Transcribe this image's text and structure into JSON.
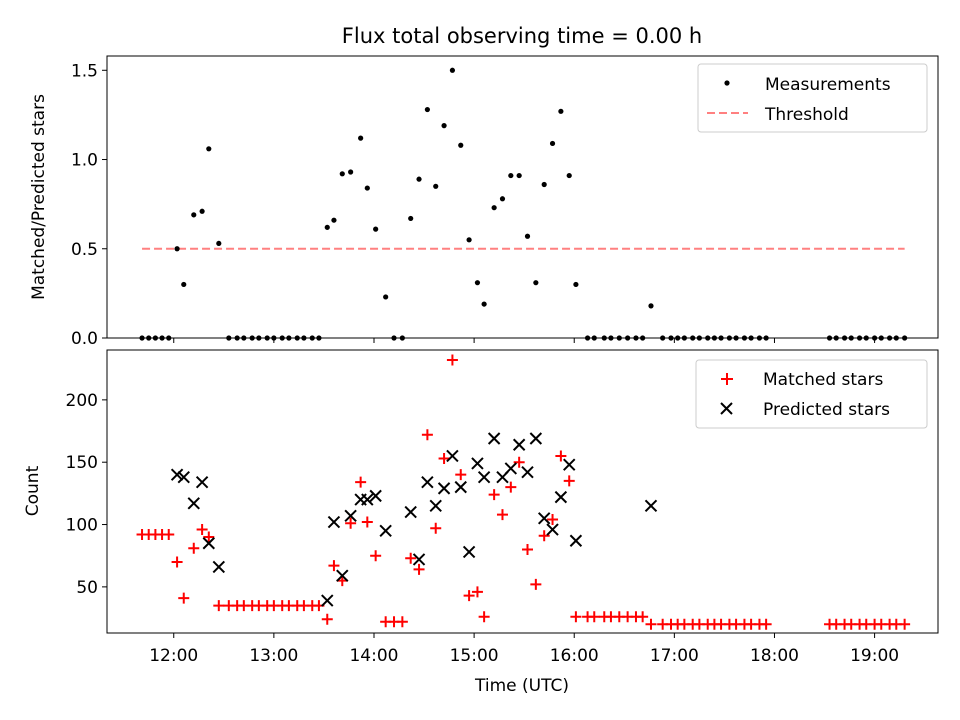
{
  "title": "Flux total observing time = 0.00 h",
  "chart_data": [
    {
      "type": "scatter",
      "panel": "top",
      "ylabel": "Matched/Predicted stars",
      "xlabel": "",
      "ylim": [
        0,
        1.58
      ],
      "yticks": [
        0,
        0.5,
        1.0,
        1.5
      ],
      "ytick_labels": [
        "0.0",
        "0.5",
        "1.0",
        "1.5"
      ],
      "legend_placement": "top-right",
      "series": [
        {
          "name": "Measurements",
          "marker": "dot",
          "color": "#000000",
          "points": [
            [
              "11:41",
              0
            ],
            [
              "11:45",
              0
            ],
            [
              "11:49",
              0
            ],
            [
              "11:53",
              0
            ],
            [
              "11:57",
              0
            ],
            [
              "12:02",
              0.5
            ],
            [
              "12:06",
              0.3
            ],
            [
              "12:12",
              0.69
            ],
            [
              "12:17",
              0.71
            ],
            [
              "12:21",
              1.06
            ],
            [
              "12:27",
              0.53
            ],
            [
              "12:33",
              0
            ],
            [
              "12:38",
              0
            ],
            [
              "12:42",
              0
            ],
            [
              "12:47",
              0
            ],
            [
              "12:51",
              0
            ],
            [
              "12:56",
              0
            ],
            [
              "13:00",
              0
            ],
            [
              "13:05",
              0
            ],
            [
              "13:09",
              0
            ],
            [
              "13:14",
              0
            ],
            [
              "13:18",
              0
            ],
            [
              "13:23",
              0
            ],
            [
              "13:27",
              0
            ],
            [
              "13:32",
              0.62
            ],
            [
              "13:36",
              0.66
            ],
            [
              "13:41",
              0.92
            ],
            [
              "13:46",
              0.93
            ],
            [
              "13:52",
              1.12
            ],
            [
              "13:56",
              0.84
            ],
            [
              "14:01",
              0.61
            ],
            [
              "14:07",
              0.23
            ],
            [
              "14:12",
              0
            ],
            [
              "14:17",
              0
            ],
            [
              "14:22",
              0.67
            ],
            [
              "14:27",
              0.89
            ],
            [
              "14:32",
              1.28
            ],
            [
              "14:37",
              0.85
            ],
            [
              "14:42",
              1.19
            ],
            [
              "14:47",
              1.5
            ],
            [
              "14:52",
              1.08
            ],
            [
              "14:57",
              0.55
            ],
            [
              "15:02",
              0.31
            ],
            [
              "15:06",
              0.19
            ],
            [
              "15:12",
              0.73
            ],
            [
              "15:17",
              0.78
            ],
            [
              "15:22",
              0.91
            ],
            [
              "15:27",
              0.91
            ],
            [
              "15:32",
              0.57
            ],
            [
              "15:37",
              0.31
            ],
            [
              "15:42",
              0.86
            ],
            [
              "15:47",
              1.09
            ],
            [
              "15:52",
              1.27
            ],
            [
              "15:57",
              0.91
            ],
            [
              "16:01",
              0.3
            ],
            [
              "16:08",
              0
            ],
            [
              "16:12",
              0
            ],
            [
              "16:18",
              0
            ],
            [
              "16:22",
              0
            ],
            [
              "16:27",
              0
            ],
            [
              "16:32",
              0
            ],
            [
              "16:37",
              0
            ],
            [
              "16:41",
              0
            ],
            [
              "16:46",
              0.18
            ],
            [
              "16:53",
              0
            ],
            [
              "16:58",
              0
            ],
            [
              "17:02",
              0
            ],
            [
              "17:06",
              0
            ],
            [
              "17:11",
              0
            ],
            [
              "17:15",
              0
            ],
            [
              "17:20",
              0
            ],
            [
              "17:24",
              0
            ],
            [
              "17:28",
              0
            ],
            [
              "17:33",
              0
            ],
            [
              "17:37",
              0
            ],
            [
              "17:42",
              0
            ],
            [
              "17:46",
              0
            ],
            [
              "17:51",
              0
            ],
            [
              "17:55",
              0
            ],
            [
              "18:33",
              0
            ],
            [
              "18:37",
              0
            ],
            [
              "18:42",
              0
            ],
            [
              "18:46",
              0
            ],
            [
              "18:51",
              0
            ],
            [
              "18:55",
              0
            ],
            [
              "19:00",
              0
            ],
            [
              "19:04",
              0
            ],
            [
              "19:09",
              0
            ],
            [
              "19:13",
              0
            ],
            [
              "19:18",
              0
            ]
          ]
        },
        {
          "name": "Threshold",
          "marker": "dashed-line",
          "color": "#ff8080",
          "x": [
            "11:41",
            "19:18"
          ],
          "y": [
            0.5,
            0.5
          ]
        }
      ]
    },
    {
      "type": "scatter",
      "panel": "bottom",
      "ylabel": "Count",
      "xlabel": "Time (UTC)",
      "ylim": [
        13,
        240
      ],
      "yticks": [
        50,
        100,
        150,
        200
      ],
      "ytick_labels": [
        "50",
        "100",
        "150",
        "200"
      ],
      "xlim": [
        "11:20",
        "19:38"
      ],
      "xticks": [
        "12:00",
        "13:00",
        "14:00",
        "15:00",
        "16:00",
        "17:00",
        "18:00",
        "19:00"
      ],
      "legend_placement": "top-right",
      "series": [
        {
          "name": "Matched stars",
          "marker": "plus",
          "color": "#ff0000",
          "points": [
            [
              "11:41",
              92
            ],
            [
              "11:45",
              92
            ],
            [
              "11:49",
              92
            ],
            [
              "11:53",
              92
            ],
            [
              "11:57",
              92
            ],
            [
              "12:02",
              70
            ],
            [
              "12:06",
              41
            ],
            [
              "12:12",
              81
            ],
            [
              "12:17",
              96
            ],
            [
              "12:21",
              90
            ],
            [
              "12:27",
              35
            ],
            [
              "12:33",
              35
            ],
            [
              "12:38",
              35
            ],
            [
              "12:42",
              35
            ],
            [
              "12:47",
              35
            ],
            [
              "12:51",
              35
            ],
            [
              "12:56",
              35
            ],
            [
              "13:00",
              35
            ],
            [
              "13:05",
              35
            ],
            [
              "13:09",
              35
            ],
            [
              "13:14",
              35
            ],
            [
              "13:18",
              35
            ],
            [
              "13:23",
              35
            ],
            [
              "13:27",
              35
            ],
            [
              "13:32",
              24
            ],
            [
              "13:36",
              67
            ],
            [
              "13:41",
              55
            ],
            [
              "13:46",
              101
            ],
            [
              "13:52",
              134
            ],
            [
              "13:56",
              102
            ],
            [
              "14:01",
              75
            ],
            [
              "14:07",
              22
            ],
            [
              "14:12",
              22
            ],
            [
              "14:17",
              22
            ],
            [
              "14:22",
              73
            ],
            [
              "14:27",
              64
            ],
            [
              "14:32",
              172
            ],
            [
              "14:37",
              97
            ],
            [
              "14:42",
              153
            ],
            [
              "14:47",
              232
            ],
            [
              "14:52",
              140
            ],
            [
              "14:57",
              43
            ],
            [
              "15:02",
              46
            ],
            [
              "15:06",
              26
            ],
            [
              "15:12",
              124
            ],
            [
              "15:17",
              108
            ],
            [
              "15:22",
              130
            ],
            [
              "15:27",
              150
            ],
            [
              "15:32",
              80
            ],
            [
              "15:37",
              52
            ],
            [
              "15:42",
              91
            ],
            [
              "15:47",
              104
            ],
            [
              "15:52",
              155
            ],
            [
              "15:57",
              135
            ],
            [
              "16:01",
              26
            ],
            [
              "16:08",
              26
            ],
            [
              "16:12",
              26
            ],
            [
              "16:18",
              26
            ],
            [
              "16:22",
              26
            ],
            [
              "16:27",
              26
            ],
            [
              "16:32",
              26
            ],
            [
              "16:37",
              26
            ],
            [
              "16:41",
              26
            ],
            [
              "16:46",
              20
            ],
            [
              "16:53",
              20
            ],
            [
              "16:58",
              20
            ],
            [
              "17:02",
              20
            ],
            [
              "17:06",
              20
            ],
            [
              "17:11",
              20
            ],
            [
              "17:15",
              20
            ],
            [
              "17:20",
              20
            ],
            [
              "17:24",
              20
            ],
            [
              "17:28",
              20
            ],
            [
              "17:33",
              20
            ],
            [
              "17:37",
              20
            ],
            [
              "17:42",
              20
            ],
            [
              "17:46",
              20
            ],
            [
              "17:51",
              20
            ],
            [
              "17:55",
              20
            ],
            [
              "18:33",
              20
            ],
            [
              "18:37",
              20
            ],
            [
              "18:42",
              20
            ],
            [
              "18:46",
              20
            ],
            [
              "18:51",
              20
            ],
            [
              "18:55",
              20
            ],
            [
              "19:00",
              20
            ],
            [
              "19:04",
              20
            ],
            [
              "19:09",
              20
            ],
            [
              "19:13",
              20
            ],
            [
              "19:18",
              20
            ]
          ]
        },
        {
          "name": "Predicted stars",
          "marker": "x",
          "color": "#000000",
          "points": [
            [
              "12:02",
              140
            ],
            [
              "12:06",
              138
            ],
            [
              "12:12",
              117
            ],
            [
              "12:17",
              134
            ],
            [
              "12:21",
              85
            ],
            [
              "12:27",
              66
            ],
            [
              "13:32",
              39
            ],
            [
              "13:36",
              102
            ],
            [
              "13:41",
              59
            ],
            [
              "13:46",
              107
            ],
            [
              "13:52",
              120
            ],
            [
              "13:56",
              120
            ],
            [
              "14:01",
              123
            ],
            [
              "14:07",
              95
            ],
            [
              "14:22",
              110
            ],
            [
              "14:27",
              72
            ],
            [
              "14:32",
              134
            ],
            [
              "14:37",
              115
            ],
            [
              "14:42",
              129
            ],
            [
              "14:47",
              155
            ],
            [
              "14:52",
              130
            ],
            [
              "14:57",
              78
            ],
            [
              "15:02",
              149
            ],
            [
              "15:06",
              138
            ],
            [
              "15:12",
              169
            ],
            [
              "15:17",
              138
            ],
            [
              "15:22",
              145
            ],
            [
              "15:27",
              164
            ],
            [
              "15:32",
              142
            ],
            [
              "15:37",
              169
            ],
            [
              "15:42",
              105
            ],
            [
              "15:47",
              96
            ],
            [
              "15:52",
              122
            ],
            [
              "15:57",
              148
            ],
            [
              "16:01",
              87
            ],
            [
              "16:46",
              115
            ]
          ]
        }
      ]
    }
  ]
}
